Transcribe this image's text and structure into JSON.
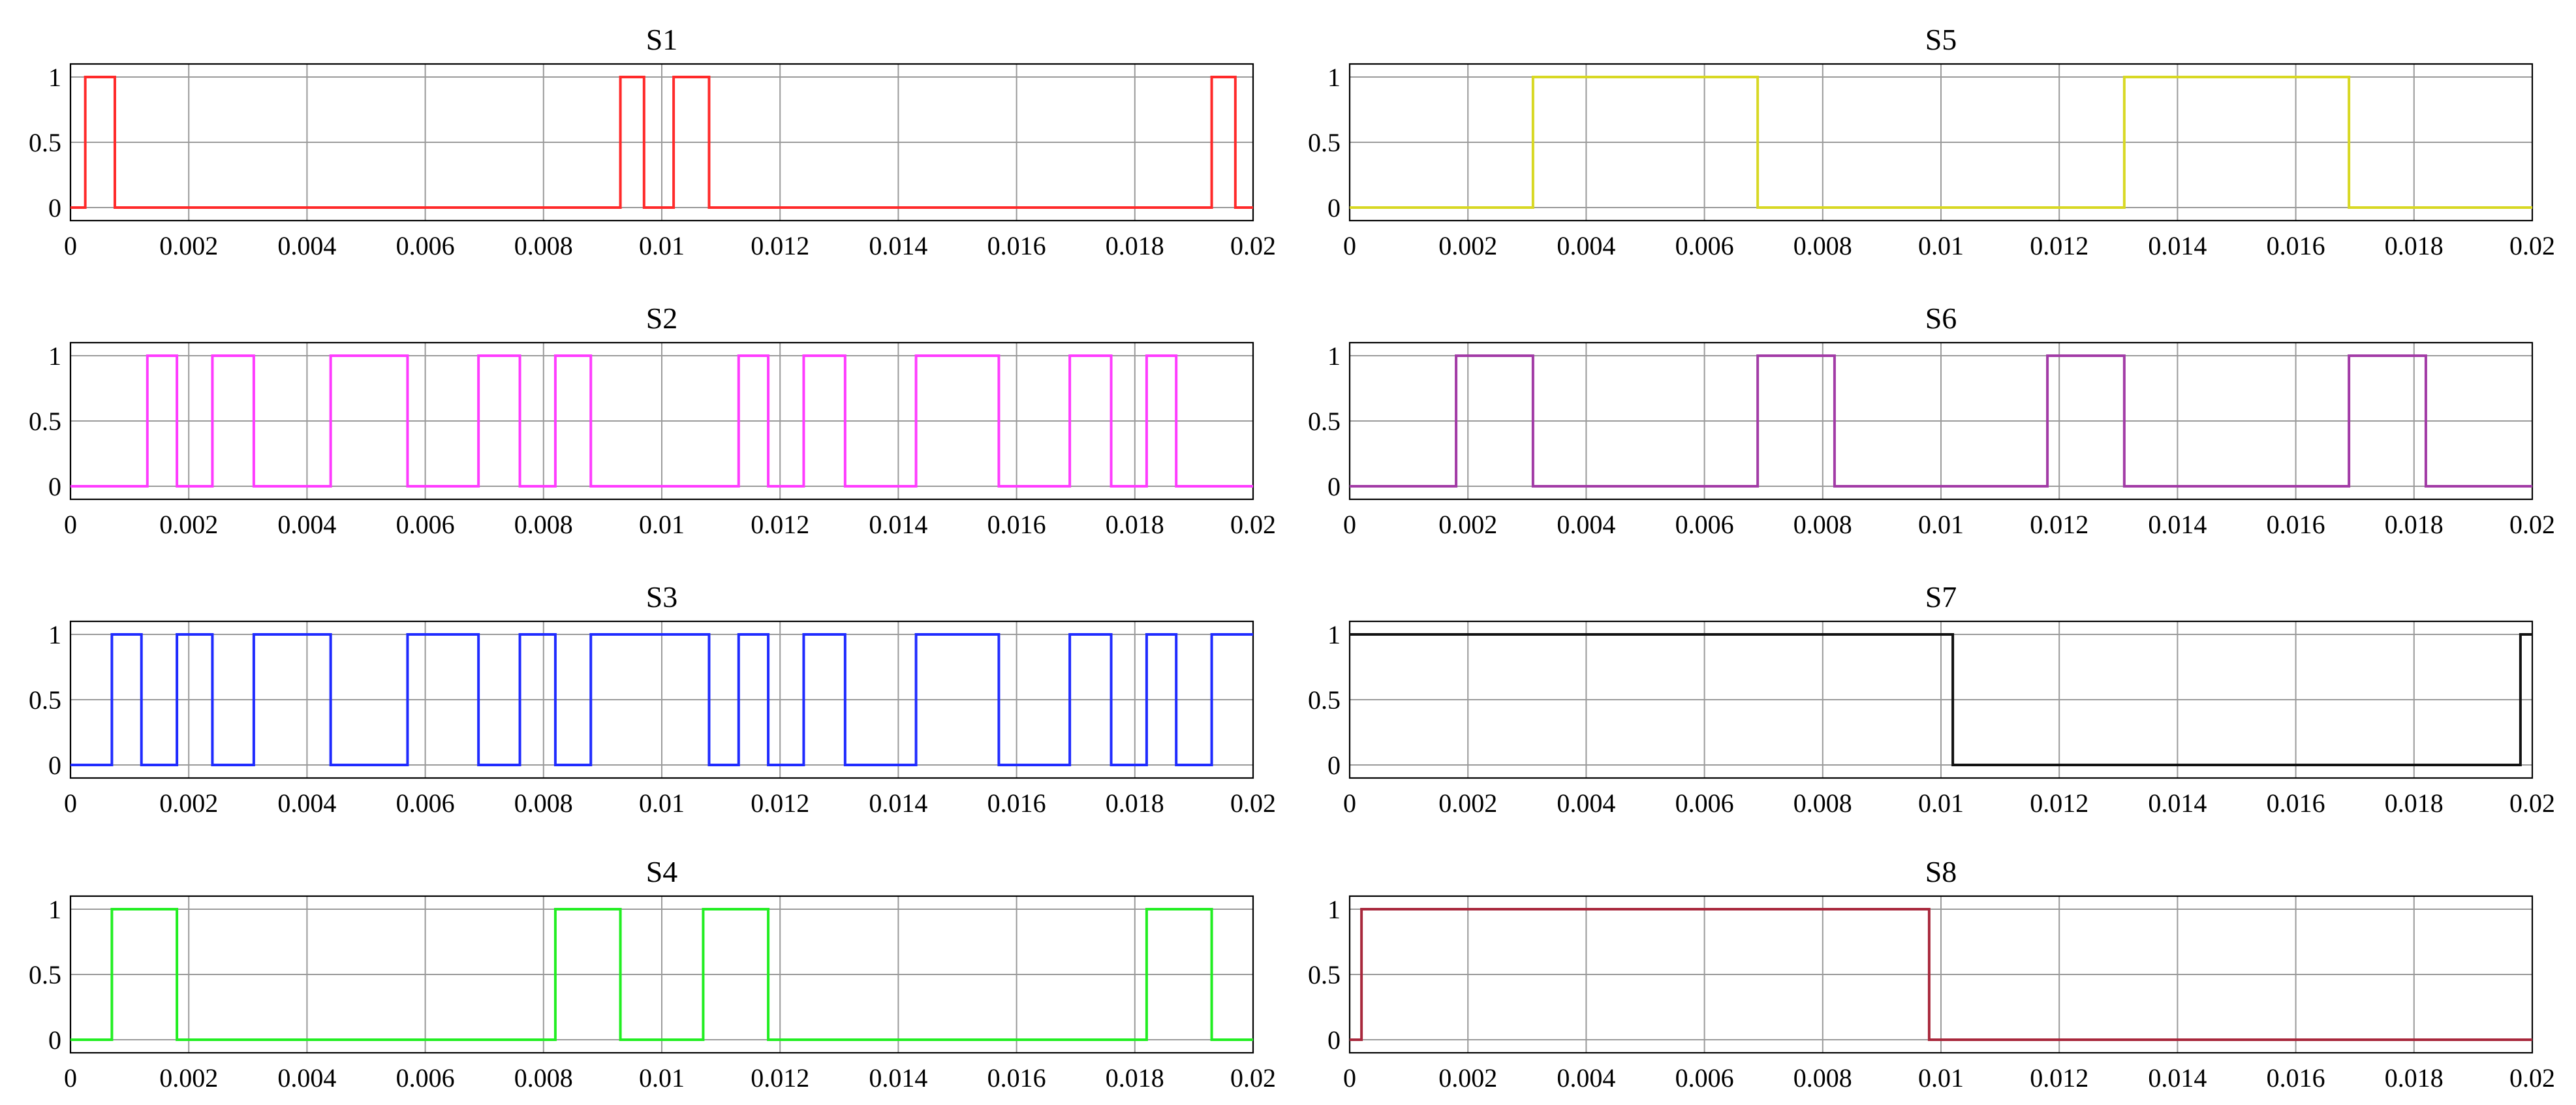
{
  "chart_data": [
    {
      "type": "line",
      "title": "S1",
      "xlim": [
        0,
        0.02
      ],
      "ylim": [
        -0.1,
        1.1
      ],
      "x_ticks": [
        "0",
        "0.002",
        "0.004",
        "0.006",
        "0.008",
        "0.01",
        "0.012",
        "0.014",
        "0.016",
        "0.018",
        "0.02"
      ],
      "y_ticks": [
        "0",
        "0.5",
        "1"
      ],
      "grid": true,
      "color": "#ff2a2a",
      "series": [
        {
          "x": [
            0,
            0.00025,
            0.00025,
            0.00075,
            0.00075,
            0.0093,
            0.0093,
            0.0097,
            0.0097,
            0.0102,
            0.0102,
            0.0108,
            0.0108,
            0.0193,
            0.0193,
            0.0197,
            0.0197,
            0.02
          ],
          "y": [
            0,
            0,
            1,
            1,
            0,
            0,
            1,
            1,
            0,
            0,
            1,
            1,
            0,
            0,
            1,
            1,
            0,
            0
          ]
        }
      ]
    },
    {
      "type": "line",
      "title": "S2",
      "xlim": [
        0,
        0.02
      ],
      "ylim": [
        -0.1,
        1.1
      ],
      "x_ticks": [
        "0",
        "0.002",
        "0.004",
        "0.006",
        "0.008",
        "0.01",
        "0.012",
        "0.014",
        "0.016",
        "0.018",
        "0.02"
      ],
      "y_ticks": [
        "0",
        "0.5",
        "1"
      ],
      "grid": true,
      "color": "#ff3cff",
      "series": [
        {
          "x": [
            0,
            0.0013,
            0.0013,
            0.0018,
            0.0018,
            0.0024,
            0.0024,
            0.0031,
            0.0031,
            0.0044,
            0.0044,
            0.0057,
            0.0057,
            0.0069,
            0.0069,
            0.0076,
            0.0076,
            0.0082,
            0.0082,
            0.0088,
            0.0088,
            0.0113,
            0.0113,
            0.0118,
            0.0118,
            0.0124,
            0.0124,
            0.0131,
            0.0131,
            0.0143,
            0.0143,
            0.0157,
            0.0157,
            0.0169,
            0.0169,
            0.0176,
            0.0176,
            0.0182,
            0.0182,
            0.0187,
            0.0187,
            0.02
          ],
          "y": [
            0,
            0,
            1,
            1,
            0,
            0,
            1,
            1,
            0,
            0,
            1,
            1,
            0,
            0,
            1,
            1,
            0,
            0,
            1,
            1,
            0,
            0,
            1,
            1,
            0,
            0,
            1,
            1,
            0,
            0,
            1,
            1,
            0,
            0,
            1,
            1,
            0,
            0,
            1,
            1,
            0,
            0
          ]
        }
      ]
    },
    {
      "type": "line",
      "title": "S3",
      "xlim": [
        0,
        0.02
      ],
      "ylim": [
        -0.1,
        1.1
      ],
      "x_ticks": [
        "0",
        "0.002",
        "0.004",
        "0.006",
        "0.008",
        "0.01",
        "0.012",
        "0.014",
        "0.016",
        "0.018",
        "0.02"
      ],
      "y_ticks": [
        "0",
        "0.5",
        "1"
      ],
      "grid": true,
      "color": "#1f2bff",
      "series": [
        {
          "x": [
            0,
            0.0007,
            0.0007,
            0.0012,
            0.0012,
            0.0018,
            0.0018,
            0.0024,
            0.0024,
            0.0031,
            0.0031,
            0.0044,
            0.0044,
            0.0057,
            0.0057,
            0.0069,
            0.0069,
            0.0076,
            0.0076,
            0.0082,
            0.0082,
            0.0088,
            0.0088,
            0.0108,
            0.0108,
            0.0113,
            0.0113,
            0.0118,
            0.0118,
            0.0124,
            0.0124,
            0.0131,
            0.0131,
            0.0143,
            0.0143,
            0.0157,
            0.0157,
            0.0169,
            0.0169,
            0.0176,
            0.0176,
            0.0182,
            0.0182,
            0.0187,
            0.0187,
            0.0193,
            0.0193,
            0.02
          ],
          "y": [
            0,
            0,
            1,
            1,
            0,
            0,
            1,
            1,
            0,
            0,
            1,
            1,
            0,
            0,
            1,
            1,
            0,
            0,
            1,
            1,
            0,
            0,
            1,
            1,
            0,
            0,
            1,
            1,
            0,
            0,
            1,
            1,
            0,
            0,
            1,
            1,
            0,
            0,
            1,
            1,
            0,
            0,
            1,
            1,
            0,
            0,
            1,
            1
          ]
        }
      ]
    },
    {
      "type": "line",
      "title": "S4",
      "xlim": [
        0,
        0.02
      ],
      "ylim": [
        -0.1,
        1.1
      ],
      "x_ticks": [
        "0",
        "0.002",
        "0.004",
        "0.006",
        "0.008",
        "0.01",
        "0.012",
        "0.014",
        "0.016",
        "0.018",
        "0.02"
      ],
      "y_ticks": [
        "0",
        "0.5",
        "1"
      ],
      "grid": true,
      "color": "#22ee22",
      "series": [
        {
          "x": [
            0,
            0.0007,
            0.0007,
            0.0018,
            0.0018,
            0.0082,
            0.0082,
            0.0093,
            0.0093,
            0.0107,
            0.0107,
            0.0118,
            0.0118,
            0.0182,
            0.0182,
            0.0193,
            0.0193,
            0.02
          ],
          "y": [
            0,
            0,
            1,
            1,
            0,
            0,
            1,
            1,
            0,
            0,
            1,
            1,
            0,
            0,
            1,
            1,
            0,
            0
          ]
        }
      ]
    },
    {
      "type": "line",
      "title": "S5",
      "xlim": [
        0,
        0.02
      ],
      "ylim": [
        -0.1,
        1.1
      ],
      "x_ticks": [
        "0",
        "0.002",
        "0.004",
        "0.006",
        "0.008",
        "0.01",
        "0.012",
        "0.014",
        "0.016",
        "0.018",
        "0.02"
      ],
      "y_ticks": [
        "0",
        "0.5",
        "1"
      ],
      "grid": true,
      "color": "#d8d823",
      "series": [
        {
          "x": [
            0,
            0.0031,
            0.0031,
            0.0069,
            0.0069,
            0.0131,
            0.0131,
            0.0169,
            0.0169,
            0.02
          ],
          "y": [
            0,
            0,
            1,
            1,
            0,
            0,
            1,
            1,
            0,
            0
          ]
        }
      ]
    },
    {
      "type": "line",
      "title": "S6",
      "xlim": [
        0,
        0.02
      ],
      "ylim": [
        -0.1,
        1.1
      ],
      "x_ticks": [
        "0",
        "0.002",
        "0.004",
        "0.006",
        "0.008",
        "0.01",
        "0.012",
        "0.014",
        "0.016",
        "0.018",
        "0.02"
      ],
      "y_ticks": [
        "0",
        "0.5",
        "1"
      ],
      "grid": true,
      "color": "#a23ba6",
      "series": [
        {
          "x": [
            0,
            0.0018,
            0.0018,
            0.0031,
            0.0031,
            0.0069,
            0.0069,
            0.0082,
            0.0082,
            0.0118,
            0.0118,
            0.0131,
            0.0131,
            0.0169,
            0.0169,
            0.0182,
            0.0182,
            0.02
          ],
          "y": [
            0,
            0,
            1,
            1,
            0,
            0,
            1,
            1,
            0,
            0,
            1,
            1,
            0,
            0,
            1,
            1,
            0,
            0
          ]
        }
      ]
    },
    {
      "type": "line",
      "title": "S7",
      "xlim": [
        0,
        0.02
      ],
      "ylim": [
        -0.1,
        1.1
      ],
      "x_ticks": [
        "0",
        "0.002",
        "0.004",
        "0.006",
        "0.008",
        "0.01",
        "0.012",
        "0.014",
        "0.016",
        "0.018",
        "0.02"
      ],
      "y_ticks": [
        "0",
        "0.5",
        "1"
      ],
      "grid": true,
      "color": "#111111",
      "series": [
        {
          "x": [
            0,
            0.0102,
            0.0102,
            0.0198,
            0.0198,
            0.02
          ],
          "y": [
            1,
            1,
            0,
            0,
            1,
            1
          ]
        }
      ]
    },
    {
      "type": "line",
      "title": "S8",
      "xlim": [
        0,
        0.02
      ],
      "ylim": [
        -0.1,
        1.1
      ],
      "x_ticks": [
        "0",
        "0.002",
        "0.004",
        "0.006",
        "0.008",
        "0.01",
        "0.012",
        "0.014",
        "0.016",
        "0.018",
        "0.02"
      ],
      "y_ticks": [
        "0",
        "0.5",
        "1"
      ],
      "grid": true,
      "color": "#a8283c",
      "series": [
        {
          "x": [
            0,
            0.0002,
            0.0002,
            0.0098,
            0.0098,
            0.02
          ],
          "y": [
            0,
            0,
            1,
            1,
            0,
            0
          ]
        }
      ]
    }
  ]
}
